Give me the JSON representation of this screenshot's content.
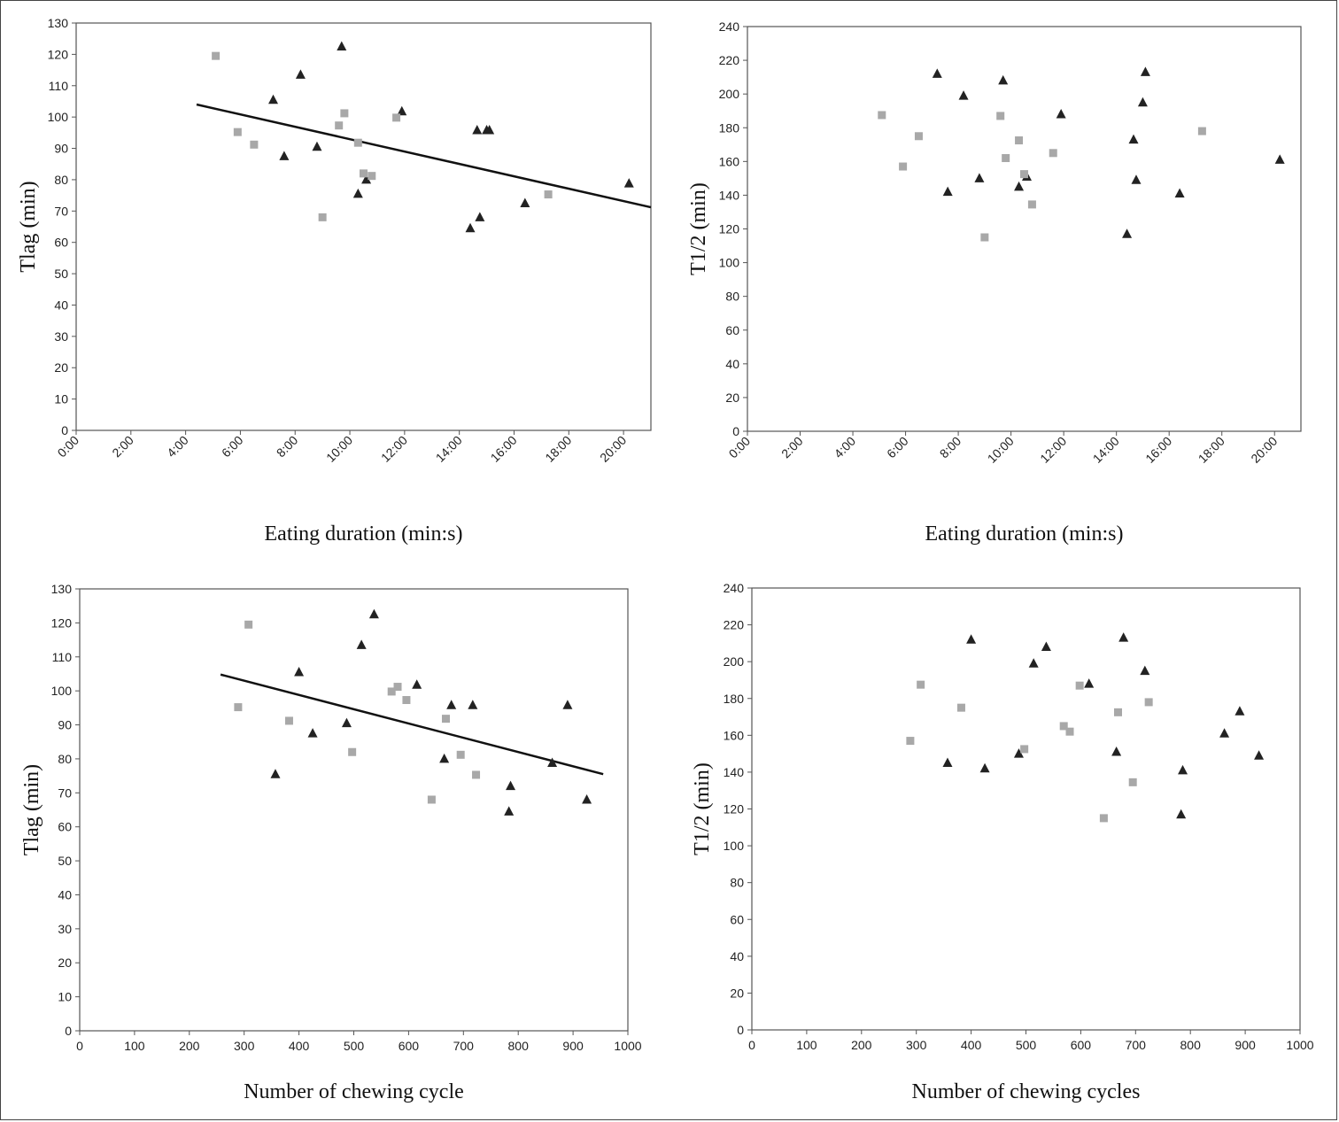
{
  "colors": {
    "triangle": "#222222",
    "square": "#a8a8a8",
    "axis": "#555555",
    "line": "#111111"
  },
  "chart_data": [
    {
      "type": "scatter",
      "xlabel": "Eating duration (min:s)",
      "ylabel": "Tlag (min)",
      "xlim": [
        0,
        21
      ],
      "ylim": [
        0,
        130
      ],
      "xticks": [
        0,
        2,
        4,
        6,
        8,
        10,
        12,
        14,
        16,
        18,
        20
      ],
      "xtick_labels": [
        "0:00",
        "2:00",
        "4:00",
        "6:00",
        "8:00",
        "10:00",
        "12:00",
        "14:00",
        "16:00",
        "18:00",
        "20:00"
      ],
      "yticks": [
        0,
        10,
        20,
        30,
        40,
        50,
        60,
        70,
        80,
        90,
        100,
        110,
        120,
        130
      ],
      "grid": false,
      "series": [
        {
          "marker": "triangle",
          "points": [
            [
              7.2,
              105.5
            ],
            [
              7.6,
              87.5
            ],
            [
              8.2,
              113.5
            ],
            [
              8.8,
              90.5
            ],
            [
              9.7,
              122.5
            ],
            [
              10.3,
              75.5
            ],
            [
              10.6,
              80
            ],
            [
              11.9,
              101.8
            ],
            [
              14.4,
              64.5
            ],
            [
              14.65,
              95.8
            ],
            [
              14.75,
              68
            ],
            [
              15.0,
              95.8
            ],
            [
              15.1,
              95.8
            ],
            [
              16.4,
              72.5
            ],
            [
              20.2,
              78.8
            ]
          ]
        },
        {
          "marker": "square",
          "points": [
            [
              5.1,
              119.5
            ],
            [
              5.9,
              95.2
            ],
            [
              6.5,
              91.2
            ],
            [
              9.0,
              68
            ],
            [
              9.6,
              97.3
            ],
            [
              9.8,
              101.2
            ],
            [
              10.3,
              91.8
            ],
            [
              10.5,
              82
            ],
            [
              10.8,
              81.2
            ],
            [
              11.7,
              99.8
            ],
            [
              17.25,
              75.3
            ]
          ]
        }
      ],
      "trendline": [
        [
          4.4,
          104
        ],
        [
          21,
          71.2
        ]
      ]
    },
    {
      "type": "scatter",
      "xlabel": "Eating duration (min:s)",
      "ylabel": "T1/2 (min)",
      "xlim": [
        0,
        21
      ],
      "ylim": [
        0,
        240
      ],
      "xticks": [
        0,
        2,
        4,
        6,
        8,
        10,
        12,
        14,
        16,
        18,
        20
      ],
      "xtick_labels": [
        "0:00",
        "2:00",
        "4:00",
        "6:00",
        "8:00",
        "10:00",
        "12:00",
        "14:00",
        "16:00",
        "18:00",
        "20:00"
      ],
      "yticks": [
        0,
        20,
        40,
        60,
        80,
        100,
        120,
        140,
        160,
        180,
        200,
        220,
        240
      ],
      "grid": false,
      "series": [
        {
          "marker": "triangle",
          "points": [
            [
              7.2,
              212
            ],
            [
              7.6,
              142
            ],
            [
              8.2,
              199
            ],
            [
              8.8,
              150
            ],
            [
              9.7,
              208
            ],
            [
              10.3,
              145
            ],
            [
              10.6,
              151
            ],
            [
              11.9,
              188
            ],
            [
              14.4,
              117
            ],
            [
              14.65,
              173
            ],
            [
              14.75,
              149
            ],
            [
              15.0,
              195
            ],
            [
              15.1,
              213
            ],
            [
              16.4,
              141
            ],
            [
              20.2,
              161
            ]
          ]
        },
        {
          "marker": "square",
          "points": [
            [
              5.1,
              187.5
            ],
            [
              5.9,
              157
            ],
            [
              6.5,
              175
            ],
            [
              9.0,
              115
            ],
            [
              9.6,
              187
            ],
            [
              9.8,
              162
            ],
            [
              10.3,
              172.5
            ],
            [
              10.5,
              152.5
            ],
            [
              10.8,
              134.5
            ],
            [
              11.6,
              165
            ],
            [
              17.25,
              178
            ]
          ]
        }
      ]
    },
    {
      "type": "scatter",
      "xlabel": "Number of chewing cycle",
      "ylabel": "Tlag (min)",
      "xlim": [
        0,
        1000
      ],
      "ylim": [
        0,
        130
      ],
      "xticks": [
        0,
        100,
        200,
        300,
        400,
        500,
        600,
        700,
        800,
        900,
        1000
      ],
      "xtick_labels": [
        "0",
        "100",
        "200",
        "300",
        "400",
        "500",
        "600",
        "700",
        "800",
        "900",
        "1000"
      ],
      "yticks": [
        0,
        10,
        20,
        30,
        40,
        50,
        60,
        70,
        80,
        90,
        100,
        110,
        120,
        130
      ],
      "grid": false,
      "series": [
        {
          "marker": "triangle",
          "points": [
            [
              357,
              75.5
            ],
            [
              400,
              105.5
            ],
            [
              425,
              87.5
            ],
            [
              487,
              90.5
            ],
            [
              514,
              113.5
            ],
            [
              537,
              122.5
            ],
            [
              615,
              101.8
            ],
            [
              665,
              80
            ],
            [
              678,
              95.8
            ],
            [
              717,
              95.8
            ],
            [
              783,
              64.5
            ],
            [
              786,
              72
            ],
            [
              862,
              78.8
            ],
            [
              890,
              95.8
            ],
            [
              925,
              68
            ]
          ]
        },
        {
          "marker": "square",
          "points": [
            [
              289,
              95.2
            ],
            [
              308,
              119.5
            ],
            [
              382,
              91.2
            ],
            [
              497,
              82
            ],
            [
              569,
              99.8
            ],
            [
              580,
              101.2
            ],
            [
              596,
              97.3
            ],
            [
              668,
              91.8
            ],
            [
              642,
              68
            ],
            [
              695,
              81.2
            ],
            [
              723,
              75.3
            ]
          ]
        }
      ],
      "trendline": [
        [
          257,
          104.8
        ],
        [
          955,
          75.5
        ]
      ]
    },
    {
      "type": "scatter",
      "xlabel": "Number of chewing cycles",
      "ylabel": "T1/2 (min)",
      "xlim": [
        0,
        1000
      ],
      "ylim": [
        0,
        240
      ],
      "xticks": [
        0,
        100,
        200,
        300,
        400,
        500,
        600,
        700,
        800,
        900,
        1000
      ],
      "xtick_labels": [
        "0",
        "100",
        "200",
        "300",
        "400",
        "500",
        "600",
        "700",
        "800",
        "900",
        "1000"
      ],
      "yticks": [
        0,
        20,
        40,
        60,
        80,
        100,
        120,
        140,
        160,
        180,
        200,
        220,
        240
      ],
      "grid": false,
      "series": [
        {
          "marker": "triangle",
          "points": [
            [
              357,
              145
            ],
            [
              400,
              212
            ],
            [
              425,
              142
            ],
            [
              487,
              150
            ],
            [
              514,
              199
            ],
            [
              537,
              208
            ],
            [
              615,
              188
            ],
            [
              665,
              151
            ],
            [
              678,
              213
            ],
            [
              717,
              195
            ],
            [
              783,
              117
            ],
            [
              786,
              141
            ],
            [
              862,
              161
            ],
            [
              890,
              173
            ],
            [
              925,
              149
            ]
          ]
        },
        {
          "marker": "square",
          "points": [
            [
              289,
              157
            ],
            [
              308,
              187.5
            ],
            [
              382,
              175
            ],
            [
              497,
              152.5
            ],
            [
              569,
              165
            ],
            [
              580,
              162
            ],
            [
              598,
              187
            ],
            [
              668,
              172.5
            ],
            [
              642,
              115
            ],
            [
              695,
              134.5
            ],
            [
              724,
              178
            ]
          ]
        }
      ]
    }
  ]
}
